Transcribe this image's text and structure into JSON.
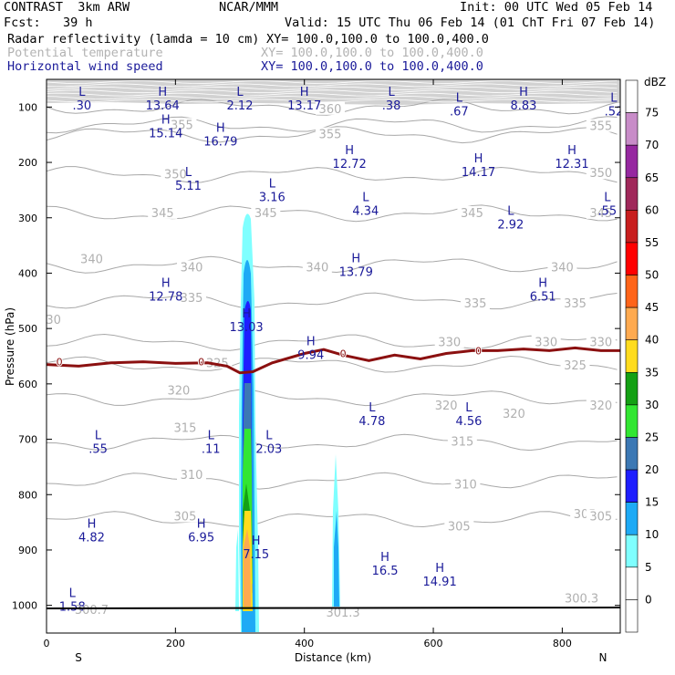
{
  "header": {
    "model": "CONTRAST  3km ARW",
    "center": "NCAR/MMM",
    "init": "Init: 00 UTC Wed 05 Feb 14",
    "fcst": "Fcst:   39 h",
    "valid": "Valid: 15 UTC Thu 06 Feb 14 (01 ChT Fri 07 Feb 14)",
    "fields": [
      {
        "name": "Radar reflectivity (lamda = 10 cm)",
        "xy": "XY= 100.0,100.0 to 100.0,400.0"
      },
      {
        "name": "Potential temperature",
        "xy": "XY= 100.0,100.0 to 100.0,400.0"
      },
      {
        "name": "Horizontal wind speed",
        "xy": "XY= 100.0,100.0 to 100.0,400.0"
      }
    ]
  },
  "chart_data": {
    "type": "cross-section",
    "xlabel": "Distance (km)",
    "ylabel": "Pressure (hPa)",
    "xlim": [
      0,
      890
    ],
    "ylim": [
      1050,
      50
    ],
    "x_ticks": [
      0,
      200,
      400,
      600,
      800
    ],
    "y_ticks": [
      100,
      200,
      300,
      400,
      500,
      600,
      700,
      800,
      900,
      1000
    ],
    "x_ends": {
      "left": "S",
      "right": "N"
    },
    "colorbar": {
      "unit": "dBZ",
      "levels": [
        0,
        5,
        10,
        15,
        20,
        25,
        30,
        35,
        40,
        45,
        50,
        55,
        60,
        65,
        70,
        75
      ],
      "colors": [
        "#ffffff",
        "#ffffff",
        "#7fffff",
        "#1eaaf5",
        "#1e1eff",
        "#3c78b4",
        "#32e632",
        "#14a014",
        "#ffdc1e",
        "#ffaa50",
        "#ff6419",
        "#ff0000",
        "#c81e1e",
        "#a0285a",
        "#9628a0",
        "#c88cc8",
        "#ffffff"
      ]
    },
    "theta_labels": [
      {
        "x": 440,
        "p": 104,
        "v": "360"
      },
      {
        "x": 210,
        "p": 133,
        "v": "355"
      },
      {
        "x": 440,
        "p": 150,
        "v": "355"
      },
      {
        "x": 860,
        "p": 135,
        "v": "355"
      },
      {
        "x": 200,
        "p": 222,
        "v": "350"
      },
      {
        "x": 860,
        "p": 220,
        "v": "350"
      },
      {
        "x": 180,
        "p": 292,
        "v": "345"
      },
      {
        "x": 340,
        "p": 292,
        "v": "345"
      },
      {
        "x": 660,
        "p": 292,
        "v": "345"
      },
      {
        "x": 860,
        "p": 292,
        "v": "345"
      },
      {
        "x": 70,
        "p": 375,
        "v": "340"
      },
      {
        "x": 225,
        "p": 390,
        "v": "340"
      },
      {
        "x": 420,
        "p": 390,
        "v": "340"
      },
      {
        "x": 800,
        "p": 390,
        "v": "340"
      },
      {
        "x": 225,
        "p": 445,
        "v": "335"
      },
      {
        "x": 665,
        "p": 455,
        "v": "335"
      },
      {
        "x": 820,
        "p": 455,
        "v": "335"
      },
      {
        "x": 5,
        "p": 485,
        "v": "330"
      },
      {
        "x": 625,
        "p": 525,
        "v": "330"
      },
      {
        "x": 775,
        "p": 525,
        "v": "330"
      },
      {
        "x": 860,
        "p": 525,
        "v": "330"
      },
      {
        "x": 265,
        "p": 563,
        "v": "325"
      },
      {
        "x": 820,
        "p": 567,
        "v": "325"
      },
      {
        "x": 205,
        "p": 613,
        "v": "320"
      },
      {
        "x": 620,
        "p": 640,
        "v": "320"
      },
      {
        "x": 725,
        "p": 655,
        "v": "320"
      },
      {
        "x": 860,
        "p": 640,
        "v": "320"
      },
      {
        "x": 215,
        "p": 680,
        "v": "315"
      },
      {
        "x": 645,
        "p": 705,
        "v": "315"
      },
      {
        "x": 225,
        "p": 765,
        "v": "310"
      },
      {
        "x": 650,
        "p": 782,
        "v": "310"
      },
      {
        "x": 215,
        "p": 840,
        "v": "305"
      },
      {
        "x": 640,
        "p": 858,
        "v": "305"
      },
      {
        "x": 835,
        "p": 836,
        "v": "305"
      },
      {
        "x": 860,
        "p": 840,
        "v": "305"
      }
    ],
    "hl_markers": [
      {
        "x": 55,
        "p": 80,
        "t": "L",
        "v": ".30"
      },
      {
        "x": 180,
        "p": 80,
        "t": "H",
        "v": "13.64"
      },
      {
        "x": 300,
        "p": 80,
        "t": "L",
        "v": "2.12"
      },
      {
        "x": 400,
        "p": 80,
        "t": "H",
        "v": "13.17"
      },
      {
        "x": 535,
        "p": 80,
        "t": "L",
        "v": ".38"
      },
      {
        "x": 640,
        "p": 90,
        "t": "L",
        "v": ".67"
      },
      {
        "x": 740,
        "p": 80,
        "t": "H",
        "v": "8.83"
      },
      {
        "x": 880,
        "p": 90,
        "t": "L",
        "v": ".52"
      },
      {
        "x": 185,
        "p": 130,
        "t": "H",
        "v": "15.14"
      },
      {
        "x": 270,
        "p": 145,
        "t": "H",
        "v": "16.79"
      },
      {
        "x": 470,
        "p": 185,
        "t": "H",
        "v": "12.72"
      },
      {
        "x": 670,
        "p": 200,
        "t": "H",
        "v": "14.17"
      },
      {
        "x": 815,
        "p": 185,
        "t": "H",
        "v": "12.31"
      },
      {
        "x": 220,
        "p": 225,
        "t": "L",
        "v": "5.11"
      },
      {
        "x": 350,
        "p": 245,
        "t": "L",
        "v": "3.16"
      },
      {
        "x": 495,
        "p": 270,
        "t": "L",
        "v": "4.34"
      },
      {
        "x": 720,
        "p": 295,
        "t": "L",
        "v": "2.92"
      },
      {
        "x": 870,
        "p": 270,
        "t": "L",
        "v": ".55"
      },
      {
        "x": 480,
        "p": 380,
        "t": "H",
        "v": "13.79"
      },
      {
        "x": 185,
        "p": 425,
        "t": "H",
        "v": "12.78"
      },
      {
        "x": 770,
        "p": 425,
        "t": "H",
        "v": "6.51"
      },
      {
        "x": 310,
        "p": 480,
        "t": "H",
        "v": "13.03"
      },
      {
        "x": 410,
        "p": 530,
        "t": "H",
        "v": "9.94"
      },
      {
        "x": 505,
        "p": 650,
        "t": "L",
        "v": "4.78"
      },
      {
        "x": 655,
        "p": 650,
        "t": "L",
        "v": "4.56"
      },
      {
        "x": 80,
        "p": 700,
        "t": "L",
        "v": ".55"
      },
      {
        "x": 255,
        "p": 700,
        "t": "L",
        "v": ".11"
      },
      {
        "x": 345,
        "p": 700,
        "t": "L",
        "v": "2.03"
      },
      {
        "x": 70,
        "p": 860,
        "t": "H",
        "v": "4.82"
      },
      {
        "x": 240,
        "p": 860,
        "t": "H",
        "v": "6.95"
      },
      {
        "x": 325,
        "p": 890,
        "t": "H",
        "v": "7.15"
      },
      {
        "x": 525,
        "p": 920,
        "t": "H",
        "v": "16.5"
      },
      {
        "x": 610,
        "p": 940,
        "t": "H",
        "v": "14.91"
      },
      {
        "x": 40,
        "p": 985,
        "t": "L",
        "v": "1.58"
      }
    ],
    "surface_theta": [
      {
        "x": 70,
        "p": 1015,
        "v": "300.7"
      },
      {
        "x": 460,
        "p": 1020,
        "v": "301.3"
      },
      {
        "x": 830,
        "p": 995,
        "v": "300.3"
      }
    ],
    "zero_labels": [
      {
        "x": 20,
        "p": 560,
        "v": "0"
      },
      {
        "x": 240,
        "p": 560,
        "v": "0"
      },
      {
        "x": 460,
        "p": 545,
        "v": "0"
      },
      {
        "x": 670,
        "p": 540,
        "v": "0"
      }
    ],
    "zero_line": [
      [
        0,
        565
      ],
      [
        50,
        568
      ],
      [
        100,
        562
      ],
      [
        150,
        560
      ],
      [
        200,
        563
      ],
      [
        250,
        562
      ],
      [
        280,
        568
      ],
      [
        300,
        580
      ],
      [
        320,
        578
      ],
      [
        350,
        562
      ],
      [
        400,
        545
      ],
      [
        430,
        538
      ],
      [
        460,
        548
      ],
      [
        500,
        558
      ],
      [
        540,
        548
      ],
      [
        580,
        555
      ],
      [
        620,
        545
      ],
      [
        660,
        540
      ],
      [
        700,
        540
      ],
      [
        740,
        537
      ],
      [
        780,
        540
      ],
      [
        820,
        535
      ],
      [
        860,
        540
      ],
      [
        890,
        540
      ]
    ]
  }
}
